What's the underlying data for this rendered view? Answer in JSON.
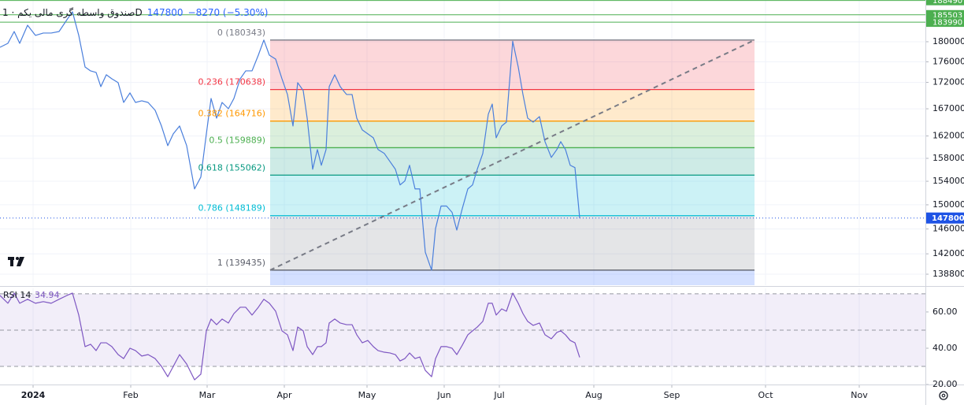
{
  "chart_data": [
    {
      "type": "line",
      "title": "صندوق واسطه گری مالی یکم · 1D",
      "change_label": "−8270 (−5.30%)",
      "color": "#4a7fdc",
      "log_scale": true,
      "xlim": [
        0,
        235
      ],
      "ylim": [
        137100,
        188600
      ],
      "xticks": [
        {
          "value": 8.4,
          "label": "2024"
        },
        {
          "value": 33.2,
          "label": "Feb"
        },
        {
          "value": 52.6,
          "label": "Mar"
        },
        {
          "value": 72.2,
          "label": "Apr"
        },
        {
          "value": 93.2,
          "label": "May"
        },
        {
          "value": 112.8,
          "label": "Jun"
        },
        {
          "value": 126.8,
          "label": "Jul"
        },
        {
          "value": 150.8,
          "label": "Aug"
        },
        {
          "value": 170.6,
          "label": "Sep"
        },
        {
          "value": 194.4,
          "label": "Oct"
        },
        {
          "value": 218.2,
          "label": "Nov"
        }
      ],
      "yticks": [
        180000,
        176000,
        172000,
        167000,
        162000,
        158000,
        154000,
        150000,
        146000,
        142000,
        138800
      ],
      "grid": true,
      "x": [
        0,
        2,
        3.6,
        5,
        7,
        9,
        11,
        13,
        15,
        17,
        18.4,
        20,
        21.6,
        23,
        24.4,
        25.6,
        27,
        28.4,
        30,
        31.4,
        33,
        34.4,
        36,
        37.6,
        39.4,
        41,
        42.6,
        44,
        45.6,
        47.4,
        49.4,
        51,
        52.4,
        53.6,
        55,
        56.4,
        58,
        59.4,
        61,
        62.4,
        64,
        65.6,
        67,
        68.4,
        70,
        71.6,
        73,
        74.4,
        75.6,
        77,
        78,
        79.4,
        80.6,
        81.6,
        82.8,
        83.6,
        85,
        86.4,
        88,
        89.4,
        90.6,
        92,
        93.4,
        94.8,
        96,
        97.6,
        99,
        100.4,
        101.6,
        102.8,
        104,
        105.4,
        106.6,
        108,
        109.6,
        110.6,
        112,
        113.4,
        114.8,
        116,
        117.4,
        118.8,
        120,
        121.2,
        122.6,
        124,
        125,
        126,
        127.4,
        128.6,
        130.2,
        131.6,
        132.8,
        134,
        135.4,
        137,
        138.4,
        140,
        141.4,
        142.4,
        143.6,
        144.8,
        146,
        147.2
      ],
      "values": [
        178890,
        179680,
        182070,
        179680,
        183350,
        181280,
        181760,
        181760,
        182070,
        184490,
        186130,
        181280,
        175000,
        174230,
        173930,
        171190,
        173470,
        172700,
        171950,
        168190,
        169990,
        168190,
        168500,
        168190,
        166720,
        163820,
        160260,
        162380,
        163820,
        160260,
        152690,
        154730,
        162380,
        168940,
        165260,
        168190,
        167010,
        168940,
        172700,
        174230,
        174230,
        177320,
        180343,
        177320,
        176540,
        172700,
        169690,
        163820,
        171950,
        170440,
        165260,
        156090,
        159560,
        156780,
        159560,
        171190,
        173470,
        171190,
        169690,
        169690,
        165260,
        163100,
        162380,
        161670,
        159560,
        158860,
        157460,
        156090,
        153370,
        154050,
        156780,
        152690,
        152690,
        142260,
        139435,
        146070,
        149790,
        149790,
        148740,
        145820,
        149390,
        152690,
        153370,
        156090,
        158860,
        165990,
        167890,
        161670,
        163820,
        164530,
        180100,
        175000,
        169690,
        165260,
        164530,
        165550,
        160970,
        158160,
        159560,
        160970,
        159560,
        156780,
        156370,
        147800
      ],
      "last_price_color": "#1e53e5",
      "price_lines": [
        188490,
        185503,
        183990
      ],
      "price_line_color": "#4caf50",
      "trend_line": {
        "x": [
          68.6,
          191.6
        ],
        "values": [
          139435,
          180343
        ],
        "color": "#787b86"
      },
      "fib": {
        "x": [
          68.6,
          191.6
        ],
        "levels": [
          {
            "ratio": 0,
            "value": 180343,
            "label": "0 (180343)",
            "color": "#787b86",
            "fill": "rgba(242,54,69,0.2)"
          },
          {
            "ratio": 0.236,
            "value": 170638,
            "label": "0.236 (170638)",
            "color": "#f23645",
            "fill": "rgba(255,152,0,0.2)"
          },
          {
            "ratio": 0.382,
            "value": 164716,
            "label": "0.382 (164716)",
            "color": "#ff9800",
            "fill": "rgba(76,175,80,0.2)"
          },
          {
            "ratio": 0.5,
            "value": 159889,
            "label": "0.5 (159889)",
            "color": "#4caf50",
            "fill": "rgba(8,153,129,0.2)"
          },
          {
            "ratio": 0.618,
            "value": 155062,
            "label": "0.618 (155062)",
            "color": "#089981",
            "fill": "rgba(0,188,212,0.2)"
          },
          {
            "ratio": 0.786,
            "value": 148189,
            "label": "0.786 (148189)",
            "color": "#00bcd4",
            "fill": "rgba(120,123,134,0.2)"
          },
          {
            "ratio": 1,
            "value": 139435,
            "label": "1 (139435)",
            "color": "#5d606b",
            "fill": "rgba(41,98,255,0.2)"
          }
        ]
      }
    },
    {
      "type": "line",
      "title": "RSI 14",
      "color": "#7e57c2",
      "xlim": [
        0,
        235
      ],
      "ylim": [
        20,
        73
      ],
      "yticks": [
        {
          "value": 60,
          "label": "60.00"
        },
        {
          "value": 40,
          "label": "40.00"
        },
        {
          "value": 20,
          "label": "20.00"
        }
      ],
      "levels": [
        70,
        50,
        30
      ],
      "band_color": "rgba(126,87,194,0.1)",
      "x": [
        0,
        2,
        3.6,
        5,
        7,
        9,
        11,
        13,
        15,
        17,
        18.4,
        20,
        21.6,
        23,
        24.4,
        25.6,
        27,
        28.4,
        30,
        31.4,
        33,
        34.4,
        36,
        37.6,
        39.4,
        41,
        42.6,
        44,
        45.6,
        47.4,
        49.4,
        51,
        52.4,
        53.6,
        55,
        56.4,
        58,
        59.4,
        61,
        62.4,
        64,
        65.6,
        67,
        68.4,
        70,
        71.6,
        73,
        74.4,
        75.6,
        77,
        78,
        79.4,
        80.6,
        81.6,
        82.8,
        83.6,
        85,
        86.4,
        88,
        89.4,
        90.6,
        92,
        93.4,
        94.8,
        96,
        97.6,
        99,
        100.4,
        101.6,
        102.8,
        104,
        105.4,
        106.6,
        108,
        109.6,
        110.6,
        112,
        113.4,
        114.8,
        116,
        117.4,
        118.8,
        120,
        121.2,
        122.6,
        124,
        125,
        126,
        127.4,
        128.6,
        130.2,
        131.6,
        132.8,
        134,
        135.4,
        137,
        138.4,
        140,
        141.4,
        142.4,
        143.6,
        144.8,
        146,
        147.2
      ],
      "values": [
        69.1,
        64.8,
        70.4,
        64.8,
        67.0,
        64.8,
        65.7,
        64.8,
        67.0,
        69.1,
        70.4,
        58.3,
        40.9,
        42.2,
        38.7,
        43.0,
        43.0,
        40.9,
        36.5,
        34.3,
        40.0,
        38.7,
        35.7,
        36.5,
        34.3,
        30.0,
        24.3,
        30.0,
        36.5,
        31.3,
        22.6,
        25.7,
        49.6,
        56.1,
        53.0,
        56.1,
        53.9,
        59.1,
        62.6,
        62.6,
        58.3,
        62.6,
        67.0,
        64.8,
        60.4,
        49.6,
        47.4,
        38.7,
        51.7,
        49.6,
        40.9,
        36.5,
        40.9,
        40.9,
        43.0,
        53.9,
        56.1,
        53.9,
        53.0,
        53.0,
        47.4,
        43.0,
        44.3,
        40.9,
        38.7,
        37.8,
        37.4,
        36.5,
        33.0,
        34.3,
        37.4,
        34.3,
        35.2,
        27.8,
        24.3,
        34.3,
        40.9,
        40.9,
        40.0,
        36.5,
        41.7,
        47.4,
        49.6,
        51.7,
        54.8,
        64.8,
        64.8,
        58.3,
        61.7,
        60.4,
        70.4,
        64.8,
        59.1,
        54.8,
        52.6,
        53.9,
        47.4,
        45.2,
        48.7,
        49.6,
        47.4,
        44.3,
        43.0,
        34.94
      ]
    }
  ]
}
